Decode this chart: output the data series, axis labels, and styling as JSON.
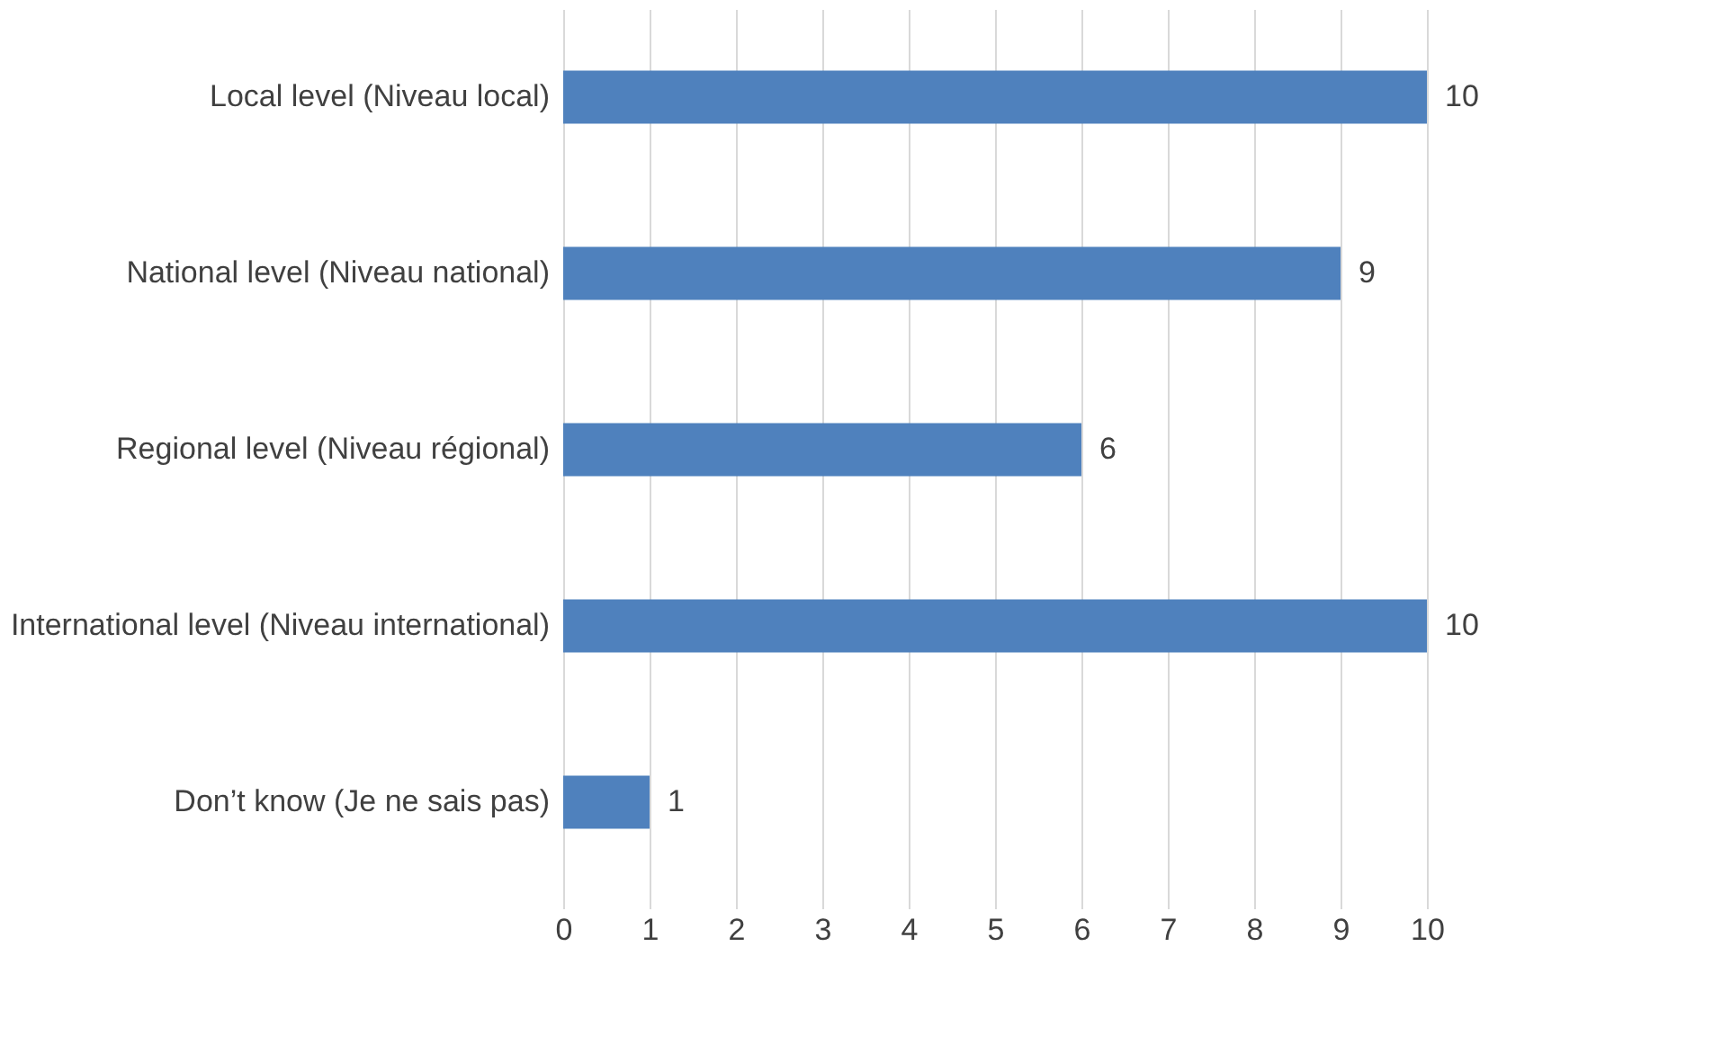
{
  "chart_data": {
    "type": "bar",
    "orientation": "horizontal",
    "categories": [
      "Local level (Niveau local)",
      "National level (Niveau national)",
      "Regional level (Niveau régional)",
      "International level (Niveau international)",
      "Don’t know (Je ne sais pas)"
    ],
    "values": [
      10,
      9,
      6,
      10,
      1
    ],
    "color": "#4f81bd",
    "xlim": [
      0,
      10
    ],
    "xticks": [
      0,
      1,
      2,
      3,
      4,
      5,
      6,
      7,
      8,
      9,
      10
    ],
    "grid": "x",
    "data_labels": true
  }
}
